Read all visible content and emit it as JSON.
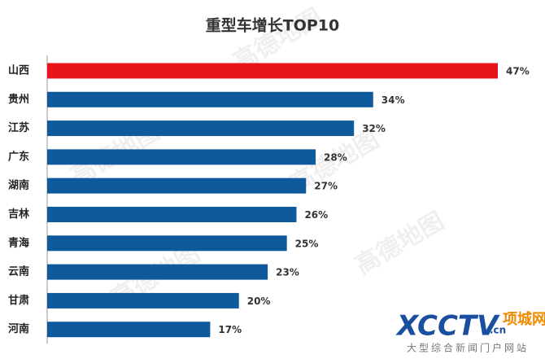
{
  "chart_data": {
    "type": "bar",
    "orientation": "horizontal",
    "title": "重型车增长TOP10",
    "categories": [
      "山西",
      "贵州",
      "江苏",
      "广东",
      "湖南",
      "吉林",
      "青海",
      "云南",
      "甘肃",
      "河南"
    ],
    "values": [
      47,
      34,
      32,
      28,
      27,
      26,
      25,
      23,
      20,
      17
    ],
    "value_labels": [
      "47%",
      "34%",
      "32%",
      "28%",
      "27%",
      "26%",
      "25%",
      "23%",
      "20%",
      "17%"
    ],
    "colors": [
      "#e8141b",
      "#0f5a9c",
      "#0f5a9c",
      "#0f5a9c",
      "#0f5a9c",
      "#0f5a9c",
      "#0f5a9c",
      "#0f5a9c",
      "#0f5a9c",
      "#0f5a9c"
    ]
  },
  "watermark": "高德地图",
  "watermark_url": "amap.com",
  "logo": {
    "brand": "XCCTV",
    "domain": ".cn",
    "name": "项城网",
    "slogan": "大型综合新闻门户网站"
  }
}
